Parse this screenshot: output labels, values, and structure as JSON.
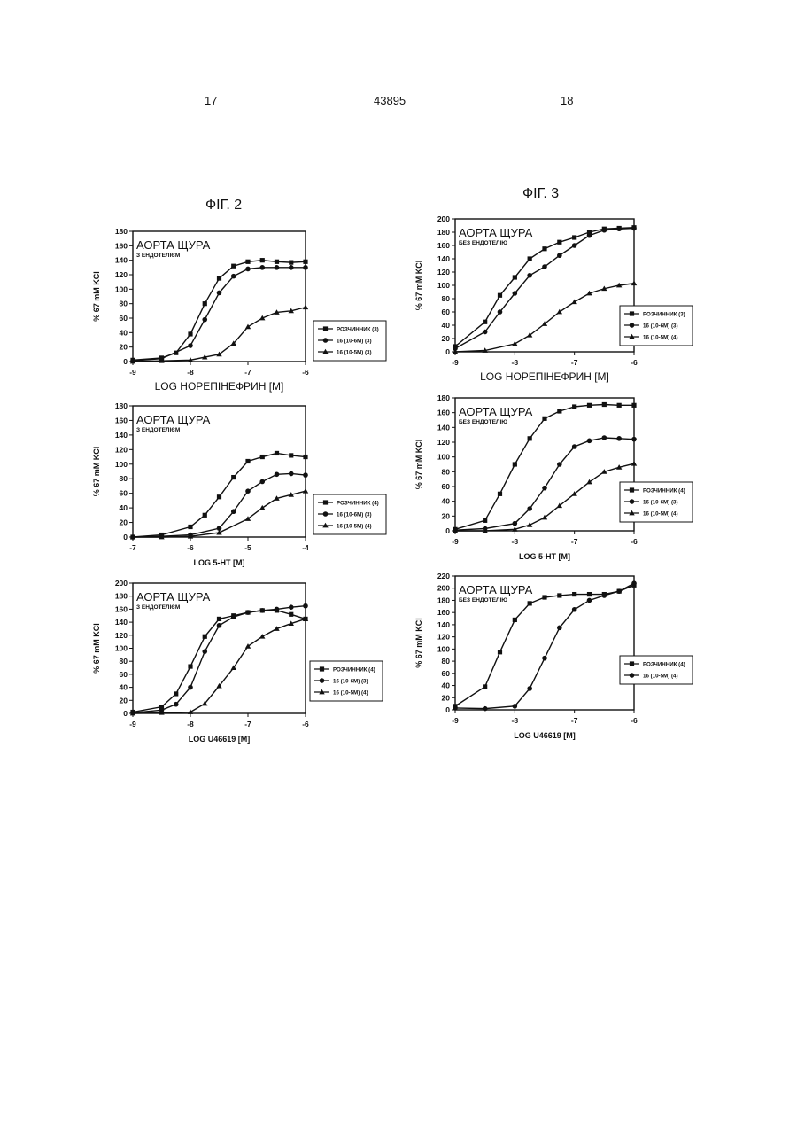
{
  "page": {
    "left_number": "17",
    "center_number": "43895",
    "right_number": "18",
    "fig2_label": "ФІГ. 2",
    "fig3_label": "ФІГ. 3"
  },
  "chart_data": [
    {
      "type": "line",
      "title": "АОРТА ЩУРА",
      "subtitle": "З ЕНДОТЕЛІЄМ",
      "xlabel": "LOG НОРЕПІНЕФРИН [M]",
      "ylabel": "% 67 mM KCl",
      "xlim": [
        -9,
        -6
      ],
      "ylim": [
        0,
        180
      ],
      "xticks": [
        "-9",
        "-8",
        "-7",
        "-6"
      ],
      "yticks": [
        "0",
        "20",
        "40",
        "60",
        "80",
        "100",
        "120",
        "140",
        "160",
        "180"
      ],
      "legend": "right",
      "series": [
        {
          "name": "РОЗЧИННИК (3)",
          "marker": "square",
          "x": [
            -9,
            -8.5,
            -8.25,
            -8,
            -7.75,
            -7.5,
            -7.25,
            -7,
            -6.75,
            -6.5,
            -6.25,
            -6
          ],
          "y": [
            2,
            5,
            12,
            38,
            80,
            115,
            132,
            138,
            140,
            138,
            137,
            138
          ]
        },
        {
          "name": "16 (10-6M) (3)",
          "marker": "circle",
          "x": [
            -9,
            -8.5,
            -8,
            -7.75,
            -7.5,
            -7.25,
            -7,
            -6.75,
            -6.5,
            -6.25,
            -6
          ],
          "y": [
            1,
            4,
            22,
            58,
            95,
            118,
            128,
            130,
            130,
            130,
            130
          ]
        },
        {
          "name": "16 (10-5M) (3)",
          "marker": "triangle",
          "x": [
            -9,
            -8.5,
            -8,
            -7.75,
            -7.5,
            -7.25,
            -7,
            -6.75,
            -6.5,
            -6.25,
            -6
          ],
          "y": [
            0,
            1,
            2,
            6,
            10,
            25,
            48,
            60,
            68,
            70,
            75
          ]
        }
      ]
    },
    {
      "type": "line",
      "title": "АОРТА ЩУРА",
      "subtitle": "БЕЗ ЕНДОТЕЛІЮ",
      "xlabel": "LOG НОРЕПІНЕФРИН [M]",
      "ylabel": "% 67 mM KCl",
      "xlim": [
        -9,
        -6
      ],
      "ylim": [
        0,
        200
      ],
      "xticks": [
        "-9",
        "-8",
        "-7",
        "-6"
      ],
      "yticks": [
        "0",
        "20",
        "40",
        "60",
        "80",
        "100",
        "120",
        "140",
        "160",
        "180",
        "200"
      ],
      "legend": "right",
      "series": [
        {
          "name": "РОЗЧИННИК (3)",
          "marker": "square",
          "x": [
            -9,
            -8.5,
            -8.25,
            -8,
            -7.75,
            -7.5,
            -7.25,
            -7,
            -6.75,
            -6.5,
            -6.25,
            -6
          ],
          "y": [
            8,
            45,
            85,
            112,
            140,
            155,
            165,
            172,
            180,
            185,
            186,
            187
          ]
        },
        {
          "name": "16 (10-6M) (3)",
          "marker": "circle",
          "x": [
            -9,
            -8.5,
            -8.25,
            -8,
            -7.75,
            -7.5,
            -7.25,
            -7,
            -6.75,
            -6.5,
            -6.25,
            -6
          ],
          "y": [
            5,
            30,
            60,
            88,
            115,
            128,
            145,
            160,
            175,
            183,
            185,
            186
          ]
        },
        {
          "name": "16 (10-5M) (4)",
          "marker": "triangle",
          "x": [
            -9,
            -8.5,
            -8,
            -7.75,
            -7.5,
            -7.25,
            -7,
            -6.75,
            -6.5,
            -6.25,
            -6
          ],
          "y": [
            0,
            2,
            12,
            25,
            42,
            60,
            75,
            88,
            95,
            100,
            103
          ]
        }
      ]
    },
    {
      "type": "line",
      "title": "АОРТА ЩУРА",
      "subtitle": "З ЕНДОТЕЛІЄМ",
      "xlabel": "LOG 5-HT [M]",
      "ylabel": "% 67 mM KCl",
      "xlim": [
        -7,
        -4
      ],
      "ylim": [
        0,
        180
      ],
      "xticks": [
        "-7",
        "-6",
        "-5",
        "-4"
      ],
      "yticks": [
        "0",
        "20",
        "40",
        "60",
        "80",
        "100",
        "120",
        "140",
        "160",
        "180"
      ],
      "legend": "right",
      "series": [
        {
          "name": "РОЗЧИННИК (4)",
          "marker": "square",
          "x": [
            -7,
            -6.5,
            -6,
            -5.75,
            -5.5,
            -5.25,
            -5,
            -4.75,
            -4.5,
            -4.25,
            -4
          ],
          "y": [
            0,
            3,
            14,
            30,
            55,
            82,
            104,
            110,
            115,
            112,
            110
          ]
        },
        {
          "name": "16 (10-6M) (3)",
          "marker": "circle",
          "x": [
            -7,
            -6.5,
            -6,
            -5.5,
            -5.25,
            -5,
            -4.75,
            -4.5,
            -4.25,
            -4
          ],
          "y": [
            0,
            1,
            3,
            12,
            35,
            63,
            76,
            86,
            87,
            85
          ]
        },
        {
          "name": "16 (10-5M) (4)",
          "marker": "triangle",
          "x": [
            -7,
            -6.5,
            -6,
            -5.5,
            -5,
            -4.75,
            -4.5,
            -4.25,
            -4
          ],
          "y": [
            0,
            0,
            1,
            6,
            25,
            40,
            53,
            58,
            63
          ]
        }
      ]
    },
    {
      "type": "line",
      "title": "АОРТА ЩУРА",
      "subtitle": "БЕЗ ЕНДОТЕЛІЮ",
      "xlabel": "LOG 5-HT [M]",
      "ylabel": "% 67 mM KCl",
      "xlim": [
        -9,
        -6
      ],
      "ylim": [
        0,
        180
      ],
      "xticks": [
        "-9",
        "-8",
        "-7",
        "-6"
      ],
      "yticks": [
        "0",
        "20",
        "40",
        "60",
        "80",
        "100",
        "120",
        "140",
        "160",
        "180"
      ],
      "legend": "right",
      "series": [
        {
          "name": "РОЗЧИННИК (4)",
          "marker": "square",
          "x": [
            -9,
            -8.5,
            -8.25,
            -8,
            -7.75,
            -7.5,
            -7.25,
            -7,
            -6.75,
            -6.5,
            -6.25,
            -6
          ],
          "y": [
            2,
            14,
            50,
            90,
            125,
            152,
            162,
            168,
            170,
            171,
            170,
            170
          ]
        },
        {
          "name": "16 (10-6M) (3)",
          "marker": "circle",
          "x": [
            -9,
            -8.5,
            -8,
            -7.75,
            -7.5,
            -7.25,
            -7,
            -6.75,
            -6.5,
            -6.25,
            -6
          ],
          "y": [
            1,
            3,
            10,
            30,
            58,
            90,
            114,
            122,
            126,
            125,
            124
          ]
        },
        {
          "name": "16 (10-5M) (4)",
          "marker": "triangle",
          "x": [
            -9,
            -8.5,
            -8,
            -7.75,
            -7.5,
            -7.25,
            -7,
            -6.75,
            -6.5,
            -6.25,
            -6
          ],
          "y": [
            0,
            0,
            2,
            8,
            18,
            34,
            50,
            66,
            80,
            86,
            91
          ]
        }
      ]
    },
    {
      "type": "line",
      "title": "АОРТА ЩУРА",
      "subtitle": "З ЕНДОТЕЛІЄМ",
      "xlabel": "LOG U46619 [M]",
      "ylabel": "% 67 mM KCl",
      "xlim": [
        -9,
        -6
      ],
      "ylim": [
        0,
        200
      ],
      "xticks": [
        "-9",
        "-8",
        "-7",
        "-6"
      ],
      "yticks": [
        "0",
        "20",
        "40",
        "60",
        "80",
        "100",
        "120",
        "140",
        "160",
        "180",
        "200"
      ],
      "legend": "right",
      "series": [
        {
          "name": "РОЗЧИННИК (4)",
          "marker": "square",
          "x": [
            -9,
            -8.5,
            -8.25,
            -8,
            -7.75,
            -7.5,
            -7.25,
            -7,
            -6.75,
            -6.5,
            -6.25,
            -6
          ],
          "y": [
            2,
            10,
            30,
            72,
            118,
            145,
            150,
            155,
            158,
            158,
            152,
            145
          ]
        },
        {
          "name": "16 (10-6M) (3)",
          "marker": "circle",
          "x": [
            -9,
            -8.5,
            -8.25,
            -8,
            -7.75,
            -7.5,
            -7.25,
            -7,
            -6.75,
            -6.5,
            -6.25,
            -6
          ],
          "y": [
            1,
            5,
            14,
            40,
            95,
            135,
            148,
            155,
            158,
            160,
            163,
            165
          ]
        },
        {
          "name": "16 (10-5M) (4)",
          "marker": "triangle",
          "x": [
            -9,
            -8.5,
            -8,
            -7.75,
            -7.5,
            -7.25,
            -7,
            -6.75,
            -6.5,
            -6.25,
            -6
          ],
          "y": [
            0,
            1,
            2,
            15,
            42,
            70,
            103,
            118,
            130,
            138,
            145
          ]
        }
      ]
    },
    {
      "type": "line",
      "title": "АОРТА ЩУРА",
      "subtitle": "БЕЗ ЕНДОТЕЛІЮ",
      "xlabel": "LOG U46619 [M]",
      "ylabel": "% 67 mM KCl",
      "xlim": [
        -9,
        -6
      ],
      "ylim": [
        0,
        220
      ],
      "xticks": [
        "-9",
        "-8",
        "-7",
        "-6"
      ],
      "yticks": [
        "0",
        "20",
        "40",
        "60",
        "80",
        "100",
        "120",
        "140",
        "160",
        "180",
        "200",
        "220"
      ],
      "legend": "right",
      "series": [
        {
          "name": "РОЗЧИННИК (4)",
          "marker": "square",
          "x": [
            -9,
            -8.5,
            -8.25,
            -8,
            -7.75,
            -7.5,
            -7.25,
            -7,
            -6.75,
            -6.5,
            -6.25,
            -6
          ],
          "y": [
            6,
            38,
            95,
            148,
            175,
            185,
            188,
            190,
            190,
            190,
            195,
            205
          ]
        },
        {
          "name": "16 (10-5M) (4)",
          "marker": "circle",
          "x": [
            -9,
            -8.5,
            -8,
            -7.75,
            -7.5,
            -7.25,
            -7,
            -6.75,
            -6.5,
            -6.25,
            -6
          ],
          "y": [
            3,
            2,
            6,
            35,
            85,
            135,
            165,
            180,
            188,
            195,
            208
          ]
        }
      ]
    }
  ]
}
